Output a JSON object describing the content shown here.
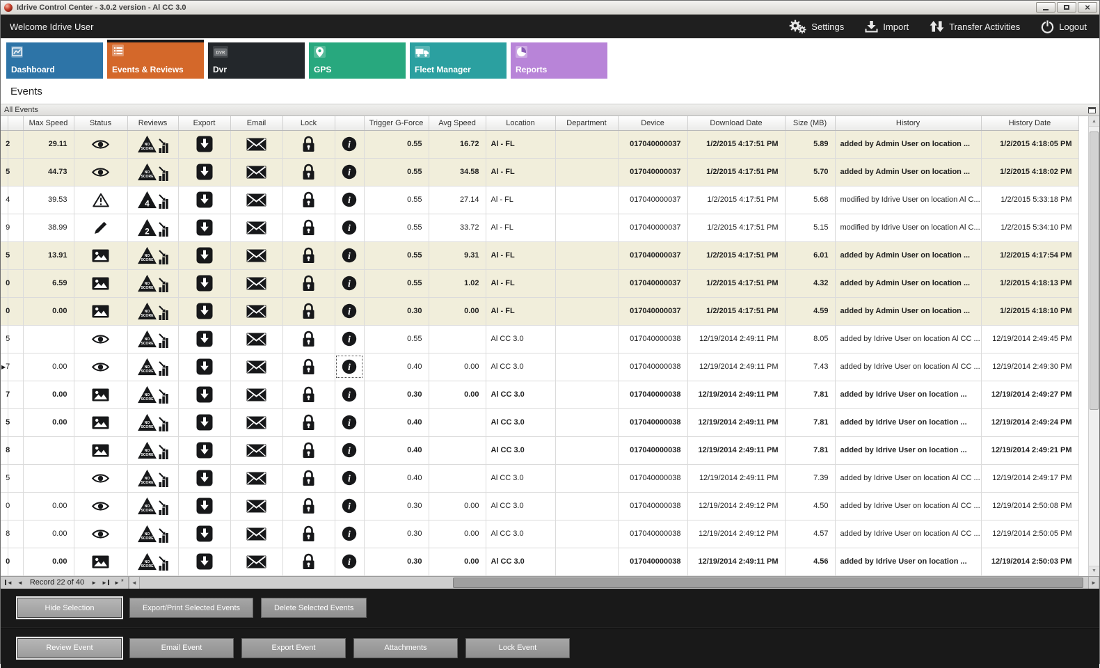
{
  "window": {
    "title": "Idrive Control Center - 3.0.2 version - Al CC 3.0"
  },
  "topbar": {
    "welcome": "Welcome Idrive User",
    "actions": [
      {
        "label": "Settings",
        "icon": "settings-gears-icon"
      },
      {
        "label": "Import",
        "icon": "import-icon"
      },
      {
        "label": "Transfer Activities",
        "icon": "transfer-icon"
      },
      {
        "label": "Logout",
        "icon": "power-icon"
      }
    ]
  },
  "tabs": [
    {
      "label": "Dashboard",
      "icon": "chart-line-icon",
      "color": "#2d74a7",
      "icon_bg": "rgba(255,255,255,0.22)",
      "active": false
    },
    {
      "label": "Events & Reviews",
      "icon": "events-list-icon",
      "color": "#d4682a",
      "icon_bg": "rgba(255,255,255,0.30)",
      "active": true
    },
    {
      "label": "Dvr",
      "icon": "dvr-icon",
      "color": "#23272b",
      "icon_bg": "#3c4044",
      "active": false
    },
    {
      "label": "GPS",
      "icon": "gps-pin-icon",
      "color": "#28a87e",
      "icon_bg": "rgba(255,255,255,0.22)",
      "active": false
    },
    {
      "label": "Fleet Manager",
      "icon": "truck-icon",
      "color": "#2ba0a0",
      "icon_bg": "rgba(255,255,255,0.22)",
      "active": false
    },
    {
      "label": "Reports",
      "icon": "pie-icon",
      "color": "#b884d8",
      "icon_bg": "rgba(255,255,255,0.30)",
      "active": false
    }
  ],
  "page_title": "Events",
  "panel": {
    "title": "All Events"
  },
  "table": {
    "columns": [
      {
        "key": "indicator",
        "label": ""
      },
      {
        "key": "id",
        "label": ""
      },
      {
        "key": "max_speed",
        "label": "Max Speed"
      },
      {
        "key": "status",
        "label": "Status"
      },
      {
        "key": "reviews",
        "label": "Reviews"
      },
      {
        "key": "export",
        "label": "Export"
      },
      {
        "key": "email",
        "label": "Email"
      },
      {
        "key": "lock",
        "label": "Lock"
      },
      {
        "key": "info",
        "label": ""
      },
      {
        "key": "trigger",
        "label": "Trigger G-Force"
      },
      {
        "key": "avg_speed",
        "label": "Avg Speed"
      },
      {
        "key": "location",
        "label": "Location"
      },
      {
        "key": "department",
        "label": "Department"
      },
      {
        "key": "device",
        "label": "Device"
      },
      {
        "key": "download_date",
        "label": "Download Date"
      },
      {
        "key": "size",
        "label": "Size (MB)"
      },
      {
        "key": "history",
        "label": "History"
      },
      {
        "key": "history_date",
        "label": "History Date"
      }
    ],
    "rows": [
      {
        "edge": "2",
        "max_speed": "29.11",
        "status": "eye-icon",
        "review": "NO SCORE",
        "trigger": "0.55",
        "avg_speed": "16.72",
        "location": "Al - FL",
        "department": "",
        "device": "017040000037",
        "download_date": "1/2/2015 4:17:51 PM",
        "size": "5.89",
        "history": "added by Admin User on location ...",
        "history_date": "1/2/2015 4:18:05 PM",
        "bold": true,
        "beige": true,
        "selected": false
      },
      {
        "edge": "5",
        "max_speed": "44.73",
        "status": "eye-icon",
        "review": "NO SCORE",
        "trigger": "0.55",
        "avg_speed": "34.58",
        "location": "Al - FL",
        "department": "",
        "device": "017040000037",
        "download_date": "1/2/2015 4:17:51 PM",
        "size": "5.70",
        "history": "added by Admin User on location ...",
        "history_date": "1/2/2015 4:18:02 PM",
        "bold": true,
        "beige": true,
        "selected": false
      },
      {
        "edge": "4",
        "max_speed": "39.53",
        "status": "warning-icon",
        "review": "4",
        "trigger": "0.55",
        "avg_speed": "27.14",
        "location": "Al - FL",
        "department": "",
        "device": "017040000037",
        "download_date": "1/2/2015 4:17:51 PM",
        "size": "5.68",
        "history": "modified by Idrive User on location Al C...",
        "history_date": "1/2/2015 5:33:18 PM",
        "bold": false,
        "beige": false,
        "selected": false
      },
      {
        "edge": "9",
        "max_speed": "38.99",
        "status": "pencil-icon",
        "review": "2",
        "trigger": "0.55",
        "avg_speed": "33.72",
        "location": "Al - FL",
        "department": "",
        "device": "017040000037",
        "download_date": "1/2/2015 4:17:51 PM",
        "size": "5.15",
        "history": "modified by Idrive User on location Al C...",
        "history_date": "1/2/2015 5:34:10 PM",
        "bold": false,
        "beige": false,
        "selected": false
      },
      {
        "edge": "5",
        "max_speed": "13.91",
        "status": "image-icon",
        "review": "NO SCORE",
        "trigger": "0.55",
        "avg_speed": "9.31",
        "location": "Al - FL",
        "department": "",
        "device": "017040000037",
        "download_date": "1/2/2015 4:17:51 PM",
        "size": "6.01",
        "history": "added by Admin User on location ...",
        "history_date": "1/2/2015 4:17:54 PM",
        "bold": true,
        "beige": true,
        "selected": false
      },
      {
        "edge": "0",
        "max_speed": "6.59",
        "status": "image-icon",
        "review": "NO SCORE",
        "trigger": "0.55",
        "avg_speed": "1.02",
        "location": "Al - FL",
        "department": "",
        "device": "017040000037",
        "download_date": "1/2/2015 4:17:51 PM",
        "size": "4.32",
        "history": "added by Admin User on location ...",
        "history_date": "1/2/2015 4:18:13 PM",
        "bold": true,
        "beige": true,
        "selected": false
      },
      {
        "edge": "0",
        "max_speed": "0.00",
        "status": "image-icon",
        "review": "NO SCORE",
        "trigger": "0.30",
        "avg_speed": "0.00",
        "location": "Al - FL",
        "department": "",
        "device": "017040000037",
        "download_date": "1/2/2015 4:17:51 PM",
        "size": "4.59",
        "history": "added by Admin User on location ...",
        "history_date": "1/2/2015 4:18:10 PM",
        "bold": true,
        "beige": true,
        "selected": false
      },
      {
        "edge": "5",
        "max_speed": "",
        "status": "eye-icon",
        "review": "NO SCORE",
        "trigger": "0.55",
        "avg_speed": "",
        "location": "Al CC 3.0",
        "department": "",
        "device": "017040000038",
        "download_date": "12/19/2014 2:49:11 PM",
        "size": "8.05",
        "history": "added by Idrive User on location Al CC ...",
        "history_date": "12/19/2014 2:49:45 PM",
        "bold": false,
        "beige": false,
        "selected": false
      },
      {
        "edge": "7",
        "max_speed": "0.00",
        "status": "eye-icon",
        "review": "NO SCORE",
        "trigger": "0.40",
        "avg_speed": "0.00",
        "location": "Al CC 3.0",
        "department": "",
        "device": "017040000038",
        "download_date": "12/19/2014 2:49:11 PM",
        "size": "7.43",
        "history": "added by Idrive User on location Al CC ...",
        "history_date": "12/19/2014 2:49:30 PM",
        "bold": false,
        "beige": false,
        "selected": true
      },
      {
        "edge": "7",
        "max_speed": "0.00",
        "status": "image-icon",
        "review": "NO SCORE",
        "trigger": "0.30",
        "avg_speed": "0.00",
        "location": "Al CC 3.0",
        "department": "",
        "device": "017040000038",
        "download_date": "12/19/2014 2:49:11 PM",
        "size": "7.81",
        "history": "added by Idrive User on location ...",
        "history_date": "12/19/2014 2:49:27 PM",
        "bold": true,
        "beige": false,
        "selected": false
      },
      {
        "edge": "5",
        "max_speed": "0.00",
        "status": "image-icon",
        "review": "NO SCORE",
        "trigger": "0.40",
        "avg_speed": "",
        "location": "Al CC 3.0",
        "department": "",
        "device": "017040000038",
        "download_date": "12/19/2014 2:49:11 PM",
        "size": "7.81",
        "history": "added by Idrive User on location ...",
        "history_date": "12/19/2014 2:49:24 PM",
        "bold": true,
        "beige": false,
        "selected": false
      },
      {
        "edge": "8",
        "max_speed": "",
        "status": "image-icon",
        "review": "NO SCORE",
        "trigger": "0.40",
        "avg_speed": "",
        "location": "Al CC 3.0",
        "department": "",
        "device": "017040000038",
        "download_date": "12/19/2014 2:49:11 PM",
        "size": "7.81",
        "history": "added by Idrive User on location ...",
        "history_date": "12/19/2014 2:49:21 PM",
        "bold": true,
        "beige": false,
        "selected": false
      },
      {
        "edge": "5",
        "max_speed": "",
        "status": "eye-icon",
        "review": "NO SCORE",
        "trigger": "0.40",
        "avg_speed": "",
        "location": "Al CC 3.0",
        "department": "",
        "device": "017040000038",
        "download_date": "12/19/2014 2:49:11 PM",
        "size": "7.39",
        "history": "added by Idrive User on location Al CC ...",
        "history_date": "12/19/2014 2:49:17 PM",
        "bold": false,
        "beige": false,
        "selected": false
      },
      {
        "edge": "0",
        "max_speed": "0.00",
        "status": "eye-icon",
        "review": "NO SCORE",
        "trigger": "0.30",
        "avg_speed": "0.00",
        "location": "Al CC 3.0",
        "department": "",
        "device": "017040000038",
        "download_date": "12/19/2014 2:49:12 PM",
        "size": "4.50",
        "history": "added by Idrive User on location Al CC ...",
        "history_date": "12/19/2014 2:50:08 PM",
        "bold": false,
        "beige": false,
        "selected": false
      },
      {
        "edge": "8",
        "max_speed": "0.00",
        "status": "eye-icon",
        "review": "NO SCORE",
        "trigger": "0.30",
        "avg_speed": "0.00",
        "location": "Al CC 3.0",
        "department": "",
        "device": "017040000038",
        "download_date": "12/19/2014 2:49:12 PM",
        "size": "4.57",
        "history": "added by Idrive User on location Al CC ...",
        "history_date": "12/19/2014 2:50:05 PM",
        "bold": false,
        "beige": false,
        "selected": false
      },
      {
        "edge": "0",
        "max_speed": "0.00",
        "status": "image-icon",
        "review": "NO SCORE",
        "trigger": "0.30",
        "avg_speed": "0.00",
        "location": "Al CC 3.0",
        "department": "",
        "device": "017040000038",
        "download_date": "12/19/2014 2:49:11 PM",
        "size": "4.56",
        "history": "added by Idrive User on location ...",
        "history_date": "12/19/2014 2:50:03 PM",
        "bold": true,
        "beige": false,
        "selected": false
      }
    ]
  },
  "pager": {
    "record_text": "Record 22 of 40"
  },
  "footer": {
    "selection_actions": [
      {
        "label": "Hide Selection",
        "focused": true
      },
      {
        "label": "Export/Print Selected Events",
        "focused": false
      },
      {
        "label": "Delete Selected  Events",
        "focused": false
      }
    ],
    "event_actions": [
      {
        "label": "Review Event",
        "focused": true
      },
      {
        "label": "Email Event",
        "focused": false
      },
      {
        "label": "Export Event",
        "focused": false
      },
      {
        "label": "Attachments",
        "focused": false
      },
      {
        "label": "Lock Event",
        "focused": false
      }
    ]
  }
}
